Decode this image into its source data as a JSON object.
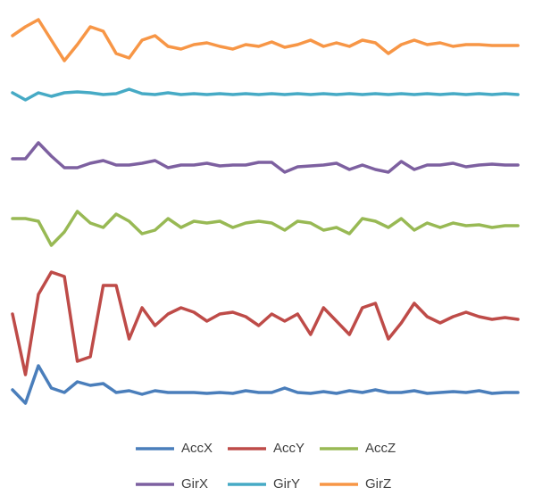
{
  "chart_data": {
    "type": "line",
    "ylim": [
      0,
      120
    ],
    "legend": "bottom",
    "series": [
      {
        "name": "AccX",
        "color": "#4a7ebb",
        "values": [
          10.75,
          7,
          17.5,
          11.25,
          10,
          13,
          12,
          12.5,
          10,
          10.5,
          9.5,
          10.5,
          10,
          10,
          10,
          9.75,
          10,
          9.75,
          10.5,
          10,
          10,
          11.25,
          10,
          9.75,
          10.25,
          9.75,
          10.5,
          10,
          10.75,
          10,
          10,
          10.5,
          9.75,
          10,
          10.25,
          10,
          10.5,
          9.75,
          10,
          10
        ]
      },
      {
        "name": "AccY",
        "color": "#be4b48",
        "values": [
          32,
          15,
          37.5,
          43.75,
          42.5,
          18.75,
          20,
          40,
          40,
          25,
          33.75,
          28.75,
          32,
          33.75,
          32.5,
          30,
          32,
          32.5,
          31.25,
          28.75,
          32,
          30,
          32,
          26.25,
          33.75,
          30,
          26.25,
          33.75,
          35,
          25,
          29.5,
          35,
          31.25,
          29.5,
          31.25,
          32.5,
          31.25,
          30.5,
          31,
          30.5
        ]
      },
      {
        "name": "AccZ",
        "color": "#98b954",
        "values": [
          58.75,
          58.75,
          58,
          51.25,
          55,
          60.75,
          57.5,
          56.25,
          60,
          58,
          54.5,
          55.5,
          58.75,
          56.25,
          58,
          57.5,
          58,
          56.25,
          57.5,
          58,
          57.5,
          55.5,
          58,
          57.5,
          55.5,
          56.25,
          54.5,
          58.75,
          58,
          56.25,
          58.75,
          55.5,
          57.5,
          56.25,
          57.5,
          56.75,
          57,
          56.25,
          56.75,
          56.75
        ]
      },
      {
        "name": "GirX",
        "color": "#7d60a0",
        "values": [
          75.5,
          75.5,
          80,
          76.25,
          73,
          73,
          74.25,
          75,
          73.75,
          73.75,
          74.25,
          75,
          73,
          73.75,
          73.75,
          74.25,
          73.5,
          73.75,
          73.75,
          74.5,
          74.5,
          71.75,
          73.25,
          73.5,
          73.75,
          74.25,
          72.5,
          73.75,
          72.5,
          71.75,
          74.75,
          72.5,
          73.75,
          73.75,
          74.25,
          73.25,
          73.75,
          74,
          73.75,
          73.75
        ]
      },
      {
        "name": "GirY",
        "color": "#46aac5",
        "values": [
          94,
          92,
          94,
          93,
          94,
          94.25,
          94,
          93.5,
          93.75,
          95,
          93.75,
          93.5,
          94,
          93.5,
          93.75,
          93.5,
          93.75,
          93.5,
          93.75,
          93.5,
          93.75,
          93.5,
          93.75,
          93.5,
          93.75,
          93.5,
          93.75,
          93.5,
          93.75,
          93.5,
          93.75,
          93.5,
          93.75,
          93.5,
          93.75,
          93.5,
          93.75,
          93.5,
          93.75,
          93.5
        ]
      },
      {
        "name": "GirZ",
        "color": "#f79646",
        "values": [
          110,
          112.5,
          114.5,
          108.75,
          103,
          107.5,
          112.5,
          111.25,
          105,
          103.75,
          108.75,
          110,
          107,
          106.25,
          107.5,
          108,
          107,
          106.25,
          107.5,
          107,
          108.25,
          106.75,
          107.5,
          108.75,
          107,
          108,
          107,
          108.75,
          108,
          105,
          107.5,
          108.75,
          107.5,
          108,
          107,
          107.5,
          107.5,
          107.25,
          107.25,
          107.25
        ]
      }
    ]
  }
}
